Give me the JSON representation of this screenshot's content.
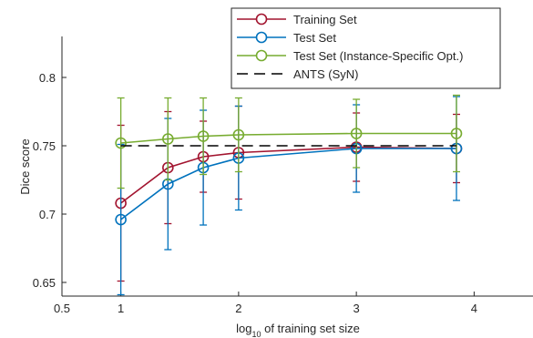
{
  "chart_data": {
    "type": "line",
    "xlabel": "log10 of training set size",
    "xlabel_parts": {
      "pre": "log",
      "sub": "10",
      "post": " of training set size"
    },
    "ylabel": "Dice score",
    "xlim": [
      0.5,
      4.5
    ],
    "ylim": [
      0.64,
      0.83
    ],
    "x_ticks": [
      {
        "value": 0.5,
        "label": "0.5"
      },
      {
        "value": 1,
        "label": "1"
      },
      {
        "value": 2,
        "label": "2"
      },
      {
        "value": 3,
        "label": "3"
      },
      {
        "value": 4,
        "label": "4"
      }
    ],
    "y_ticks": [
      {
        "value": 0.65,
        "label": "0.65"
      },
      {
        "value": 0.7,
        "label": "0.7"
      },
      {
        "value": 0.75,
        "label": "0.75"
      },
      {
        "value": 0.8,
        "label": "0.8"
      }
    ],
    "grid": false,
    "legend_position": "top-right",
    "series": [
      {
        "name": "Training Set",
        "color": "#a2142f",
        "marker": "circle",
        "linestyle": "solid",
        "x": [
          1,
          1.4,
          1.7,
          2,
          3,
          3.85
        ],
        "y": [
          0.708,
          0.734,
          0.742,
          0.745,
          0.749,
          0.748
        ],
        "err": [
          0.057,
          0.041,
          0.026,
          0.034,
          0.025,
          0.025
        ]
      },
      {
        "name": "Test Set",
        "color": "#0072bd",
        "marker": "circle",
        "linestyle": "solid",
        "x": [
          1,
          1.4,
          1.7,
          2,
          3,
          3.85
        ],
        "y": [
          0.696,
          0.722,
          0.734,
          0.741,
          0.748,
          0.748
        ],
        "err": [
          0.055,
          0.048,
          0.042,
          0.038,
          0.032,
          0.038
        ]
      },
      {
        "name": "Test Set (Instance-Specific Opt.)",
        "color": "#77ac30",
        "marker": "circle",
        "linestyle": "solid",
        "x": [
          1,
          1.4,
          1.7,
          2,
          3,
          3.85
        ],
        "y": [
          0.752,
          0.755,
          0.757,
          0.758,
          0.759,
          0.759
        ],
        "err": [
          0.033,
          0.03,
          0.028,
          0.027,
          0.025,
          0.028
        ]
      },
      {
        "name": "ANTS (SyN)",
        "color": "#000000",
        "marker": "none",
        "linestyle": "dashed",
        "x": [
          1,
          3.85
        ],
        "y": [
          0.75,
          0.75
        ]
      }
    ]
  }
}
